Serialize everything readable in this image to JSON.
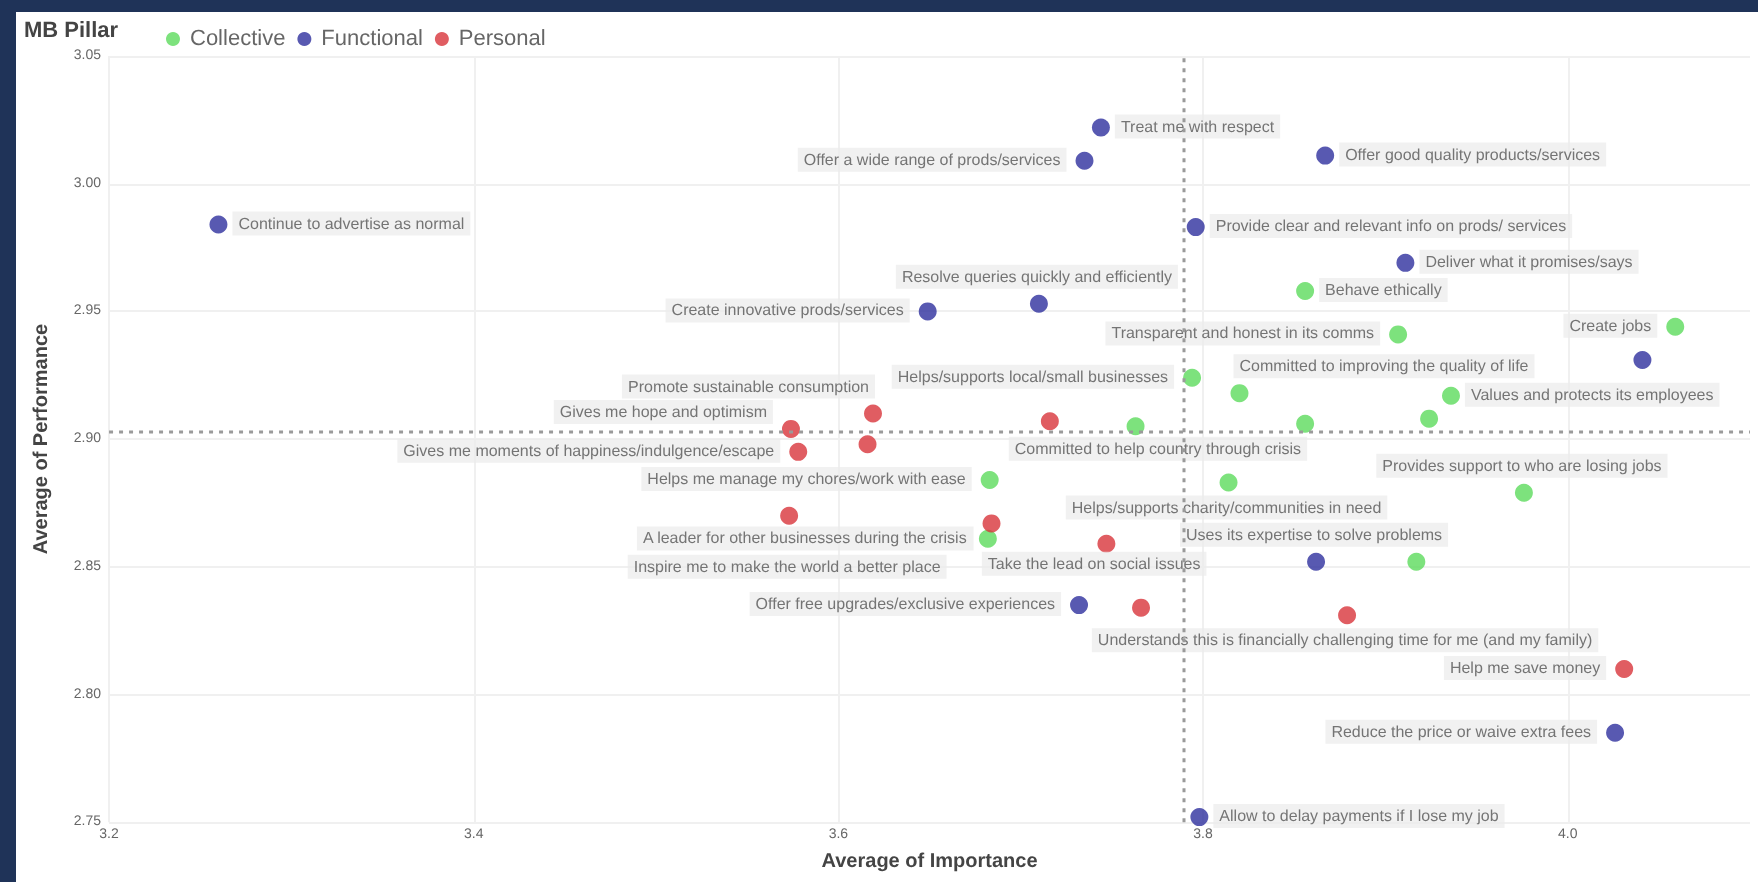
{
  "chart_data": {
    "type": "scatter",
    "xlabel": "Average of Importance",
    "ylabel": "Average of Performance",
    "legend_title": "MB Pillar",
    "legend": "top left",
    "grid": true,
    "marker": "circle",
    "xlim": [
      3.2,
      4.1
    ],
    "xticks": [
      3.2,
      3.4,
      3.6,
      3.8,
      {
        "value": 4,
        "label": "4.0"
      }
    ],
    "ylim": [
      2.75,
      3.05
    ],
    "yticks": [
      2.75,
      {
        "value": 2.8,
        "label": "2.80"
      },
      2.85,
      {
        "value": 2.9,
        "label": "2.90"
      },
      2.95,
      {
        "value": 3,
        "label": "3.00"
      },
      3.05
    ],
    "ref_lines": [
      {
        "axis": "x",
        "value": 3.789,
        "color": "#9a9a9a",
        "line_style": "dotted"
      },
      {
        "axis": "y",
        "value": 2.903,
        "color": "#9a9a9a",
        "line_style": "dotted"
      }
    ],
    "series": [
      {
        "name": "Collective",
        "color": "#5ddb5d",
        "x": [
          3.856,
          3.907,
          4.059,
          3.794,
          3.82,
          3.936,
          3.856,
          3.924,
          3.763,
          3.683,
          3.814,
          3.976,
          3.682,
          3.917
        ],
        "values": [
          2.958,
          2.941,
          2.944,
          2.924,
          2.918,
          2.917,
          2.906,
          2.908,
          2.905,
          2.884,
          2.883,
          2.879,
          2.861,
          2.852
        ],
        "value_labels": [
          "Behave ethically",
          "Transparent and honest in its comms",
          "Create jobs",
          "Helps/supports local/small businesses",
          "Committed to improving the quality of life",
          "Values and protects its employees",
          "Committed to help country through crisis",
          null,
          null,
          "Helps me manage my chores/work with ease",
          "Helps/supports charity/communities in need",
          "Provides support to who are losing jobs",
          "Take the lead on social issues",
          null
        ]
      },
      {
        "name": "Functional",
        "color": "#2e2f9e",
        "x": [
          3.26,
          3.744,
          3.735,
          3.867,
          3.796,
          3.911,
          3.71,
          3.649,
          4.041,
          3.862,
          3.732,
          3.798,
          4.026
        ],
        "values": [
          2.984,
          3.022,
          3.009,
          3.011,
          2.983,
          2.969,
          2.953,
          2.95,
          2.931,
          2.852,
          2.835,
          2.752,
          2.785
        ],
        "value_labels": [
          "Continue to advertise as normal",
          "Treat me with respect",
          "Offer a wide range of prods/services",
          "Offer good quality products/services",
          "Provide clear and relevant info on prods/ services",
          "Deliver what it promises/says",
          "Resolve queries quickly and efficiently",
          "Create innovative prods/services",
          null,
          "Uses its expertise to solve problems",
          "Offer free upgrades/exclusive experiences",
          "Allow to delay payments if I lose my job",
          "Reduce the price or waive extra fees"
        ]
      },
      {
        "name": "Personal",
        "color": "#d8343b",
        "x": [
          3.574,
          3.619,
          3.578,
          3.616,
          3.716,
          3.684,
          3.573,
          3.747,
          3.766,
          3.879,
          4.031
        ],
        "values": [
          2.904,
          2.91,
          2.895,
          2.898,
          2.907,
          2.867,
          2.87,
          2.859,
          2.834,
          2.831,
          2.81
        ],
        "value_labels": [
          "Gives me hope and optimism",
          "Promote sustainable consumption",
          "Gives me moments of happiness/indulgence/escape",
          null,
          null,
          "A leader for other businesses during the crisis",
          "Inspire me to make the world a better place",
          null,
          null,
          "Understands this is financially challenging time for me (and my family)",
          "Help me save money"
        ]
      }
    ]
  }
}
